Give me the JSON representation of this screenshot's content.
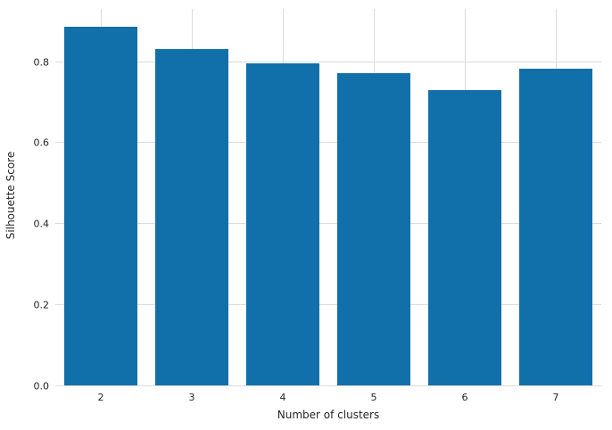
{
  "chart_data": {
    "type": "bar",
    "title": "",
    "xlabel": "Number of clusters",
    "ylabel": "Silhouette Score",
    "categories": [
      "2",
      "3",
      "4",
      "5",
      "6",
      "7"
    ],
    "values": [
      0.885,
      0.83,
      0.795,
      0.772,
      0.73,
      0.782
    ],
    "ylim": [
      0,
      0.93
    ],
    "yticks": [
      0.0,
      0.2,
      0.4,
      0.6,
      0.8
    ],
    "grid": true,
    "legend": false,
    "bar_color": "#1170aa",
    "grid_color": "#dcdcdc",
    "tick_label_color": "#262626",
    "axis_label_color": "#262626"
  }
}
